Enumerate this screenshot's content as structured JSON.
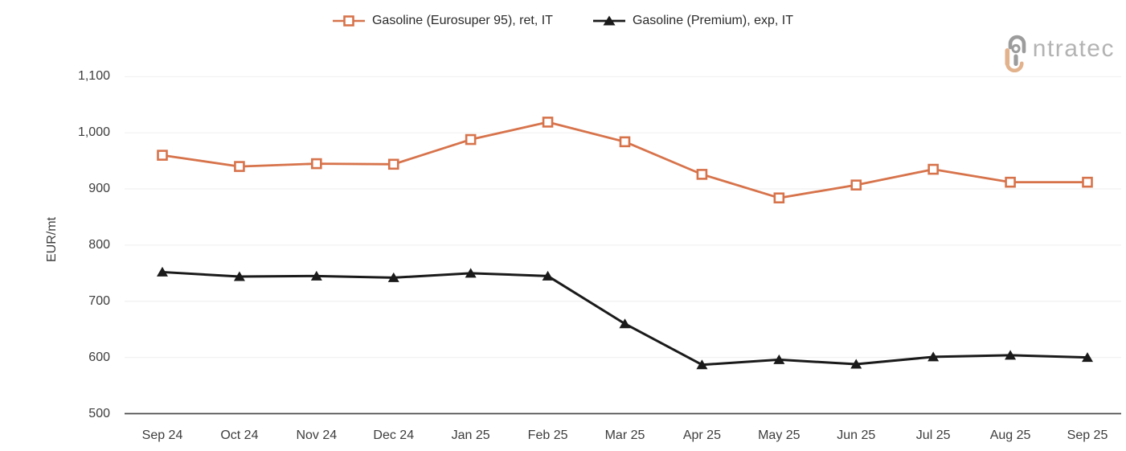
{
  "logo": {
    "brand": "intratec",
    "text": "ntratec",
    "gray": "#9c9c9c",
    "text_gray": "#b3b3b3",
    "tan": "#e2b28c"
  },
  "colors": {
    "grid": "#f1f1f1",
    "axis_line": "#4a4a4a",
    "tick_label": "#3d3d3d",
    "legend_text": "#2b2b2b",
    "background": "#ffffff"
  },
  "chart_data": {
    "type": "line",
    "title": "",
    "xlabel": "",
    "ylabel": "EUR/mt",
    "ylim": [
      500,
      1100
    ],
    "ytick_step": 100,
    "ytick_labels": [
      "500",
      "600",
      "700",
      "800",
      "900",
      "1,000",
      "1,100"
    ],
    "grid": "horizontal",
    "legend_position": "top-center",
    "categories": [
      "Sep 24",
      "Oct 24",
      "Nov 24",
      "Dec 24",
      "Jan 25",
      "Feb 25",
      "Mar 25",
      "Apr 25",
      "May 25",
      "Jun 25",
      "Jul 25",
      "Aug 25",
      "Sep 25"
    ],
    "series": [
      {
        "name": "Gasoline (Eurosuper 95), ret, IT",
        "color": "#d7734b",
        "marker": "square-hollow",
        "values": [
          960,
          940,
          945,
          944,
          988,
          1019,
          984,
          926,
          884,
          907,
          935,
          912,
          912
        ]
      },
      {
        "name": "Gasoline (Premium), exp, IT",
        "color": "#1a1a1a",
        "marker": "triangle-filled",
        "values": [
          752,
          744,
          745,
          742,
          750,
          745,
          660,
          587,
          596,
          588,
          601,
          604,
          600
        ]
      }
    ]
  }
}
